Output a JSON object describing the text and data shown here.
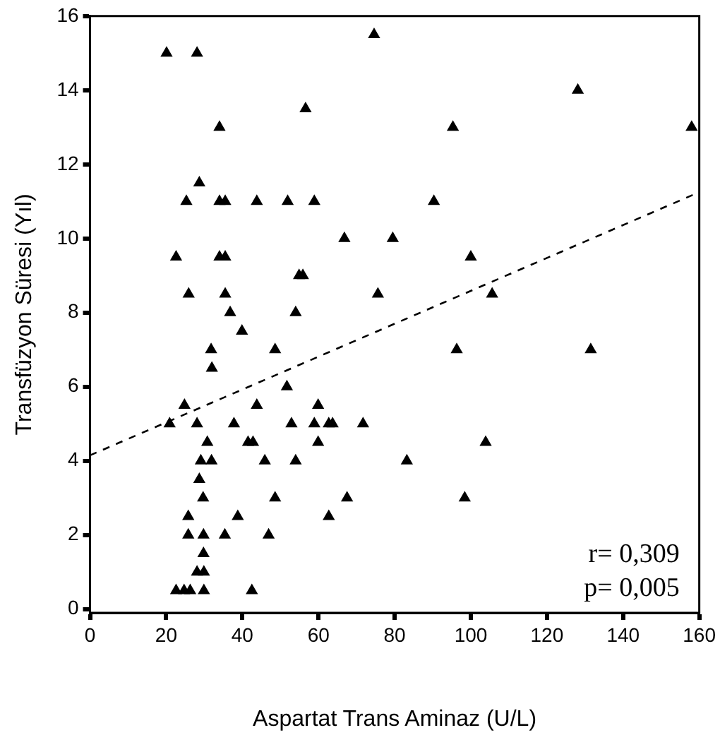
{
  "chart_data": {
    "type": "scatter",
    "xlabel": "Aspartat Trans Aminaz (U/L)",
    "ylabel": "Transfüzyon Süresi (Yıl)",
    "xlim": [
      0,
      160
    ],
    "ylim": [
      -0.1,
      16
    ],
    "xticks": [
      0,
      20,
      40,
      60,
      80,
      100,
      120,
      140,
      160
    ],
    "yticks": [
      0,
      2,
      4,
      6,
      8,
      10,
      12,
      14,
      16
    ],
    "grid": false,
    "legend": false,
    "marker": "triangle",
    "series": [
      {
        "type": "scatter",
        "color": "#000000",
        "x": [
          20.1,
          28.1,
          74.6,
          56.6,
          34,
          28.7,
          25.3,
          34,
          35.5,
          43.8,
          51.9,
          58.9,
          66.8,
          79.5,
          22.6,
          34,
          35.5,
          54.9,
          55.9,
          25.9,
          35.5,
          75.6,
          36.8,
          54,
          39.9,
          31.8,
          48.6,
          128.1,
          95.3,
          158,
          90.3,
          100,
          105.6,
          96.3,
          131.5,
          32,
          51.7,
          24.8,
          43.8,
          59.9,
          20.9,
          28.1,
          37.8,
          52.9,
          58.9,
          62.7,
          63.7,
          71.7,
          30.8,
          41.5,
          42.8,
          59.9,
          29.1,
          31.9,
          45.9,
          54,
          28.7,
          29.7,
          48.6,
          67.5,
          25.8,
          38.8,
          62.7,
          25.8,
          29.8,
          35.4,
          46.9,
          29.8,
          28.1,
          29.9,
          22.6,
          24.7,
          26.3,
          29.9,
          42.5,
          103.9,
          83.2,
          98.4
        ],
        "values": [
          15,
          15,
          15.5,
          13.5,
          13,
          11.5,
          11,
          11,
          11,
          11,
          11,
          11,
          10,
          10,
          9.5,
          9.5,
          9.5,
          9,
          9,
          8.5,
          8.5,
          8.5,
          8,
          8,
          7.5,
          7,
          7,
          14,
          13,
          13,
          11,
          9.5,
          8.5,
          7,
          7,
          6.5,
          6,
          5.5,
          5.5,
          5.5,
          5,
          5,
          5,
          5,
          5,
          5,
          5,
          5,
          4.5,
          4.5,
          4.5,
          4.5,
          4,
          4,
          4,
          4,
          3.5,
          3,
          3,
          3,
          2.5,
          2.5,
          2.5,
          2,
          2,
          2,
          2,
          1.5,
          1,
          1,
          0.5,
          0.5,
          0.5,
          0.5,
          0.5,
          4.5,
          4,
          3
        ]
      },
      {
        "type": "line",
        "color": "#000000",
        "line_style": "dashed",
        "marker": "none",
        "x": [
          0,
          160
        ],
        "values": [
          4.15,
          11.25
        ]
      }
    ],
    "annotations": [
      "r= 0,309",
      "p= 0,005"
    ]
  }
}
